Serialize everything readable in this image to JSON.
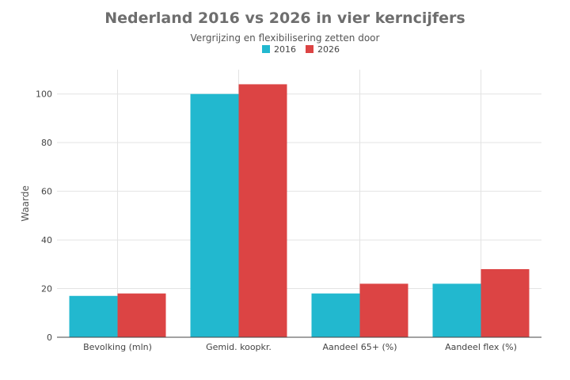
{
  "chart_data": {
    "type": "bar",
    "title": "Nederland 2016 vs 2026 in vier kerncijfers",
    "subtitle": "Vergrijzing en flexibilisering zetten door",
    "ylabel": "Waarde",
    "xlabel": "",
    "categories": [
      "Bevolking (mln)",
      "Gemid. koopkr.",
      "Aandeel 65+ (%)",
      "Aandeel flex (%)"
    ],
    "series": [
      {
        "name": "2016",
        "color": "#22b8cf",
        "values": [
          17,
          100,
          18,
          22
        ]
      },
      {
        "name": "2026",
        "color": "#dc4444",
        "values": [
          18,
          104,
          22,
          28
        ]
      }
    ],
    "ylim": [
      0,
      110
    ],
    "yticks": [
      0,
      20,
      40,
      60,
      80,
      100
    ],
    "grid": true,
    "legend": "top-center"
  }
}
